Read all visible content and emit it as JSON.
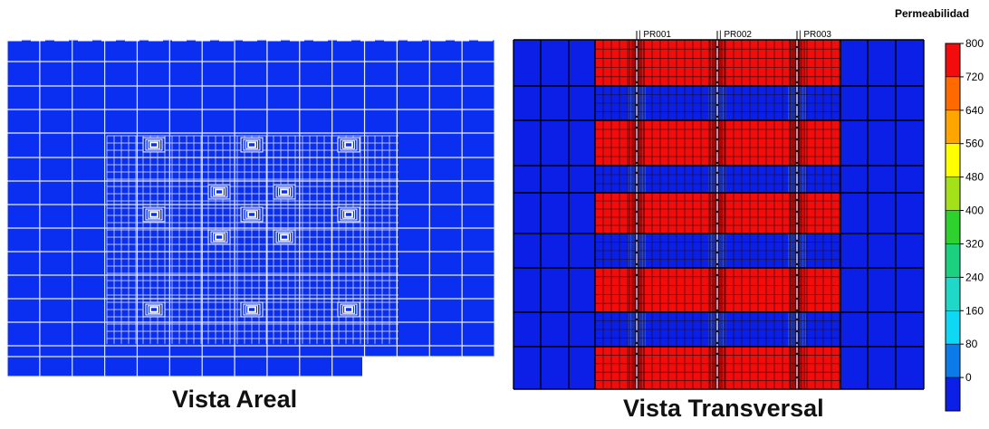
{
  "areal": {
    "caption": "Vista Areal",
    "fill_color": "#0b2ff0",
    "line_color": "#e8ecff"
  },
  "transversal": {
    "caption": "Vista Transversal",
    "wells": [
      "PR001",
      "PR002",
      "PR003"
    ],
    "layer_permeability": [
      800,
      40,
      800,
      40,
      800,
      40,
      800,
      40,
      800
    ],
    "outer_permeability": 40
  },
  "legend": {
    "title": "Permeabilidad",
    "ticks": [
      800,
      720,
      640,
      560,
      480,
      400,
      320,
      240,
      160,
      80,
      0
    ],
    "colors": [
      "#f20c0c",
      "#ff6a00",
      "#ffa500",
      "#ffff00",
      "#a4e11a",
      "#2fd12f",
      "#1bd17f",
      "#1fd8c8",
      "#0fd8f5",
      "#0a7be8",
      "#0b1fe6"
    ]
  }
}
